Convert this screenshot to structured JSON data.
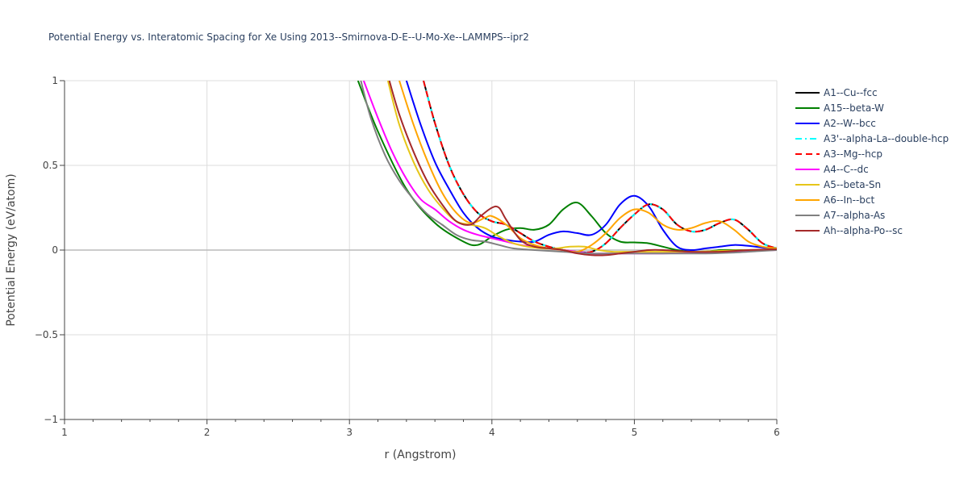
{
  "chart_data": {
    "type": "line",
    "title": "Potential Energy vs. Interatomic Spacing for Xe Using 2013--Smirnova-D-E--U-Mo-Xe--LAMMPS--ipr2",
    "xlabel": "r (Angstrom)",
    "ylabel": "Potential Energy (eV/atom)",
    "xlim": [
      1,
      6
    ],
    "ylim": [
      -1,
      1
    ],
    "x_ticks": [
      1,
      2,
      3,
      4,
      5,
      6
    ],
    "x_tick_labels": [
      "1",
      "2",
      "3",
      "4",
      "5",
      "6"
    ],
    "y_ticks": [
      -1,
      -0.5,
      0,
      0.5,
      1
    ],
    "y_tick_labels": [
      "−1",
      "−0.5",
      "0",
      "0.5",
      "1"
    ],
    "grid": true,
    "legend_position": "right",
    "series": [
      {
        "name": "A1--Cu--fcc",
        "color": "#000000",
        "dash": "solid",
        "x": [
          3.52,
          3.6,
          3.7,
          3.8,
          3.9,
          4.0,
          4.1,
          4.2,
          4.3,
          4.4,
          4.5,
          4.6,
          4.7,
          4.8,
          4.9,
          5.0,
          5.1,
          5.2,
          5.3,
          5.4,
          5.5,
          5.6,
          5.7,
          5.8,
          5.9,
          6.0
        ],
        "y": [
          1.0,
          0.75,
          0.5,
          0.33,
          0.22,
          0.17,
          0.15,
          0.1,
          0.05,
          0.02,
          0.0,
          -0.01,
          -0.01,
          0.04,
          0.13,
          0.21,
          0.27,
          0.24,
          0.15,
          0.11,
          0.12,
          0.16,
          0.18,
          0.12,
          0.04,
          0.01
        ]
      },
      {
        "name": "A15--beta-W",
        "color": "#008000",
        "dash": "solid",
        "x": [
          3.06,
          3.2,
          3.4,
          3.6,
          3.8,
          3.9,
          4.0,
          4.1,
          4.2,
          4.3,
          4.4,
          4.5,
          4.6,
          4.7,
          4.8,
          4.9,
          5.0,
          5.1,
          5.2,
          5.3,
          5.4,
          5.5,
          5.6,
          5.7,
          5.8,
          5.9,
          6.0
        ],
        "y": [
          1.0,
          0.7,
          0.36,
          0.16,
          0.05,
          0.03,
          0.08,
          0.12,
          0.13,
          0.12,
          0.15,
          0.24,
          0.28,
          0.2,
          0.1,
          0.05,
          0.045,
          0.04,
          0.02,
          0.0,
          -0.01,
          -0.01,
          0.0,
          0.0,
          0.0,
          0.0,
          0.01
        ]
      },
      {
        "name": "A2--W--bcc",
        "color": "#0000ff",
        "dash": "solid",
        "x": [
          3.4,
          3.5,
          3.6,
          3.7,
          3.8,
          3.9,
          4.0,
          4.1,
          4.2,
          4.3,
          4.4,
          4.5,
          4.6,
          4.7,
          4.8,
          4.9,
          5.0,
          5.1,
          5.2,
          5.3,
          5.4,
          5.5,
          5.6,
          5.7,
          5.8,
          5.9,
          6.0
        ],
        "y": [
          1.0,
          0.74,
          0.52,
          0.36,
          0.22,
          0.13,
          0.08,
          0.06,
          0.05,
          0.05,
          0.09,
          0.11,
          0.1,
          0.09,
          0.15,
          0.27,
          0.32,
          0.26,
          0.12,
          0.02,
          0.0,
          0.01,
          0.02,
          0.03,
          0.025,
          0.015,
          0.01
        ]
      },
      {
        "name": "A3'--alpha-La--double-hcp",
        "color": "#00ffff",
        "dash": "dashdot",
        "x": [
          3.52,
          3.6,
          3.7,
          3.8,
          3.9,
          4.0,
          4.1,
          4.2,
          4.3,
          4.4,
          4.5,
          4.6,
          4.7,
          4.8,
          4.9,
          5.0,
          5.1,
          5.2,
          5.3,
          5.4,
          5.5,
          5.6,
          5.7,
          5.8,
          5.9,
          6.0
        ],
        "y": [
          1.0,
          0.75,
          0.5,
          0.33,
          0.22,
          0.17,
          0.15,
          0.1,
          0.05,
          0.02,
          0.0,
          -0.01,
          -0.01,
          0.04,
          0.13,
          0.21,
          0.27,
          0.24,
          0.15,
          0.11,
          0.12,
          0.16,
          0.18,
          0.12,
          0.04,
          0.01
        ]
      },
      {
        "name": "A3--Mg--hcp",
        "color": "#ff0000",
        "dash": "dash",
        "x": [
          3.52,
          3.6,
          3.7,
          3.8,
          3.9,
          4.0,
          4.1,
          4.2,
          4.3,
          4.4,
          4.5,
          4.6,
          4.7,
          4.8,
          4.9,
          5.0,
          5.1,
          5.2,
          5.3,
          5.4,
          5.5,
          5.6,
          5.7,
          5.8,
          5.9,
          6.0
        ],
        "y": [
          1.0,
          0.75,
          0.5,
          0.33,
          0.22,
          0.17,
          0.15,
          0.1,
          0.05,
          0.02,
          0.0,
          -0.01,
          -0.01,
          0.04,
          0.13,
          0.21,
          0.27,
          0.24,
          0.15,
          0.11,
          0.12,
          0.16,
          0.18,
          0.12,
          0.04,
          0.01
        ]
      },
      {
        "name": "A4--C--dc",
        "color": "#ff00ff",
        "dash": "solid",
        "x": [
          3.1,
          3.2,
          3.3,
          3.4,
          3.5,
          3.6,
          3.7,
          3.8,
          3.9,
          4.0,
          4.1,
          4.2,
          4.3,
          4.4,
          4.5,
          4.6,
          4.7,
          4.8,
          4.9,
          5.0,
          5.2,
          5.4,
          5.6,
          5.8,
          6.0
        ],
        "y": [
          1.0,
          0.78,
          0.58,
          0.42,
          0.3,
          0.24,
          0.17,
          0.12,
          0.09,
          0.07,
          0.05,
          0.03,
          0.02,
          0.01,
          0.0,
          -0.01,
          -0.02,
          -0.02,
          -0.02,
          -0.02,
          -0.02,
          -0.015,
          -0.01,
          -0.005,
          0.0
        ]
      },
      {
        "name": "A5--beta-Sn",
        "color": "#e6c619",
        "dash": "solid",
        "x": [
          3.27,
          3.35,
          3.45,
          3.55,
          3.65,
          3.75,
          3.85,
          3.95,
          4.05,
          4.15,
          4.25,
          4.35,
          4.45,
          4.55,
          4.65,
          4.75,
          4.85,
          4.95,
          5.05,
          5.2,
          5.4,
          5.6,
          5.8,
          6.0
        ],
        "y": [
          1.0,
          0.74,
          0.52,
          0.36,
          0.25,
          0.17,
          0.15,
          0.13,
          0.08,
          0.04,
          0.02,
          0.01,
          0.01,
          0.02,
          0.02,
          0.0,
          -0.01,
          -0.01,
          -0.01,
          -0.01,
          -0.01,
          -0.005,
          0.0,
          0.005
        ]
      },
      {
        "name": "A6--In--bct",
        "color": "#ffa500",
        "dash": "solid",
        "x": [
          3.35,
          3.45,
          3.55,
          3.65,
          3.75,
          3.85,
          3.95,
          4.0,
          4.1,
          4.2,
          4.3,
          4.4,
          4.5,
          4.6,
          4.7,
          4.8,
          4.9,
          5.0,
          5.1,
          5.2,
          5.3,
          5.4,
          5.5,
          5.6,
          5.7,
          5.8,
          5.9,
          6.0
        ],
        "y": [
          1.0,
          0.74,
          0.52,
          0.34,
          0.22,
          0.16,
          0.19,
          0.2,
          0.15,
          0.07,
          0.03,
          0.01,
          0.0,
          -0.01,
          0.03,
          0.1,
          0.19,
          0.24,
          0.22,
          0.15,
          0.12,
          0.13,
          0.16,
          0.17,
          0.12,
          0.05,
          0.02,
          0.01
        ]
      },
      {
        "name": "A7--alpha-As",
        "color": "#808080",
        "dash": "solid",
        "x": [
          3.08,
          3.15,
          3.25,
          3.35,
          3.45,
          3.55,
          3.65,
          3.75,
          3.85,
          3.95,
          4.05,
          4.15,
          4.3,
          4.5,
          4.7,
          4.9,
          5.1,
          5.3,
          5.5,
          5.7,
          5.9,
          6.0
        ],
        "y": [
          1.0,
          0.78,
          0.56,
          0.41,
          0.3,
          0.21,
          0.15,
          0.09,
          0.06,
          0.05,
          0.03,
          0.01,
          0.0,
          -0.01,
          -0.02,
          -0.02,
          -0.02,
          -0.02,
          -0.02,
          -0.015,
          -0.005,
          0.0
        ]
      },
      {
        "name": "Ah--alpha-Po--sc",
        "color": "#a52a2a",
        "dash": "solid",
        "x": [
          3.28,
          3.35,
          3.45,
          3.55,
          3.65,
          3.75,
          3.85,
          3.92,
          4.0,
          4.05,
          4.1,
          4.2,
          4.3,
          4.4,
          4.5,
          4.6,
          4.7,
          4.8,
          4.9,
          5.0,
          5.1,
          5.2,
          5.4,
          5.6,
          5.8,
          6.0
        ],
        "y": [
          1.0,
          0.8,
          0.58,
          0.4,
          0.27,
          0.17,
          0.15,
          0.2,
          0.25,
          0.25,
          0.18,
          0.06,
          0.02,
          0.01,
          0.0,
          -0.02,
          -0.03,
          -0.03,
          -0.02,
          -0.01,
          0.0,
          0.0,
          -0.01,
          -0.01,
          0.0,
          0.005
        ]
      }
    ]
  }
}
